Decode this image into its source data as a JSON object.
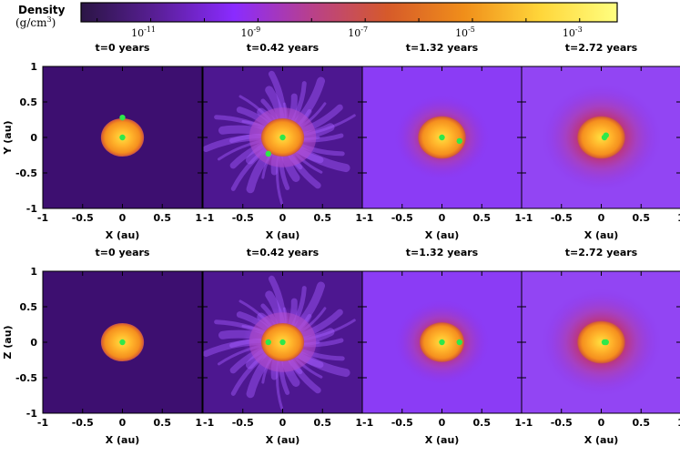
{
  "chart_data": {
    "type": "heatmap",
    "colorbar": {
      "label_line1": "Density",
      "label_line2": "(g/cm",
      "label_sup": "3",
      "label_close": ")",
      "scale": "log",
      "tick_base": "10",
      "ticks": [
        "-11",
        "-9",
        "-7",
        "-5",
        "-3"
      ],
      "colors": [
        "#2b1545",
        "#5a1f98",
        "#8a2bff",
        "#b8408c",
        "#d65a2a",
        "#f08e1a",
        "#ffd63a",
        "#ffff80"
      ]
    },
    "x_tick_labels": [
      "-1",
      "-0.5",
      "0",
      "0.5",
      "1"
    ],
    "y_tick_labels": [
      "1",
      "0.5",
      "0",
      "-0.5",
      "-1"
    ],
    "xlim": [
      -1,
      1
    ],
    "ylim": [
      -1,
      1
    ],
    "xlabel": "X (au)",
    "panels": [
      {
        "row": 0,
        "col": 0,
        "title": "t=0 years",
        "plane": "XY",
        "ylabel": "Y (au)",
        "envelope_radius_au": 0.27,
        "halo_radius_au": 0.0,
        "ejecta": false,
        "bg": "#3d0f70",
        "stars": [
          {
            "x": 0.0,
            "y": 0.0
          },
          {
            "x": 0.0,
            "y": 0.28
          }
        ]
      },
      {
        "row": 0,
        "col": 1,
        "title": "t=0.42 years",
        "plane": "XY",
        "envelope_radius_au": 0.27,
        "halo_radius_au": 0.45,
        "ejecta": true,
        "bg": "#4d1790",
        "stars": [
          {
            "x": 0.0,
            "y": 0.0
          },
          {
            "x": -0.18,
            "y": -0.23
          }
        ]
      },
      {
        "row": 0,
        "col": 2,
        "title": "t=1.32 years",
        "plane": "XY",
        "envelope_radius_au": 0.3,
        "halo_radius_au": 0.6,
        "ejecta": false,
        "bg": "#8b3cf5",
        "stars": [
          {
            "x": 0.0,
            "y": 0.0
          },
          {
            "x": 0.22,
            "y": -0.05
          }
        ]
      },
      {
        "row": 0,
        "col": 3,
        "title": "t=2.72 years",
        "plane": "XY",
        "envelope_radius_au": 0.3,
        "halo_radius_au": 0.75,
        "ejecta": false,
        "bg": "#9245f3",
        "stars": [
          {
            "x": 0.04,
            "y": 0.0
          },
          {
            "x": 0.06,
            "y": 0.03
          }
        ]
      },
      {
        "row": 1,
        "col": 0,
        "title": "t=0 years",
        "plane": "XZ",
        "ylabel": "Z (au)",
        "envelope_radius_au": 0.27,
        "halo_radius_au": 0.0,
        "ejecta": false,
        "bg": "#3d0f70",
        "stars": [
          {
            "x": 0.0,
            "y": 0.0
          }
        ]
      },
      {
        "row": 1,
        "col": 1,
        "title": "t=0.42 years",
        "plane": "XZ",
        "envelope_radius_au": 0.27,
        "halo_radius_au": 0.5,
        "ejecta": true,
        "bg": "#4d1790",
        "stars": [
          {
            "x": 0.0,
            "y": 0.0
          },
          {
            "x": -0.18,
            "y": 0.0
          }
        ]
      },
      {
        "row": 1,
        "col": 2,
        "title": "t=1.32 years",
        "plane": "XZ",
        "envelope_radius_au": 0.28,
        "halo_radius_au": 0.6,
        "ejecta": false,
        "bg": "#8b3cf5",
        "stars": [
          {
            "x": 0.0,
            "y": 0.0
          },
          {
            "x": 0.22,
            "y": 0.0
          }
        ]
      },
      {
        "row": 1,
        "col": 3,
        "title": "t=2.72 years",
        "plane": "XZ",
        "envelope_radius_au": 0.3,
        "halo_radius_au": 0.75,
        "ejecta": false,
        "bg": "#9245f3",
        "stars": [
          {
            "x": 0.04,
            "y": 0.0
          },
          {
            "x": 0.06,
            "y": 0.0
          }
        ]
      }
    ]
  }
}
